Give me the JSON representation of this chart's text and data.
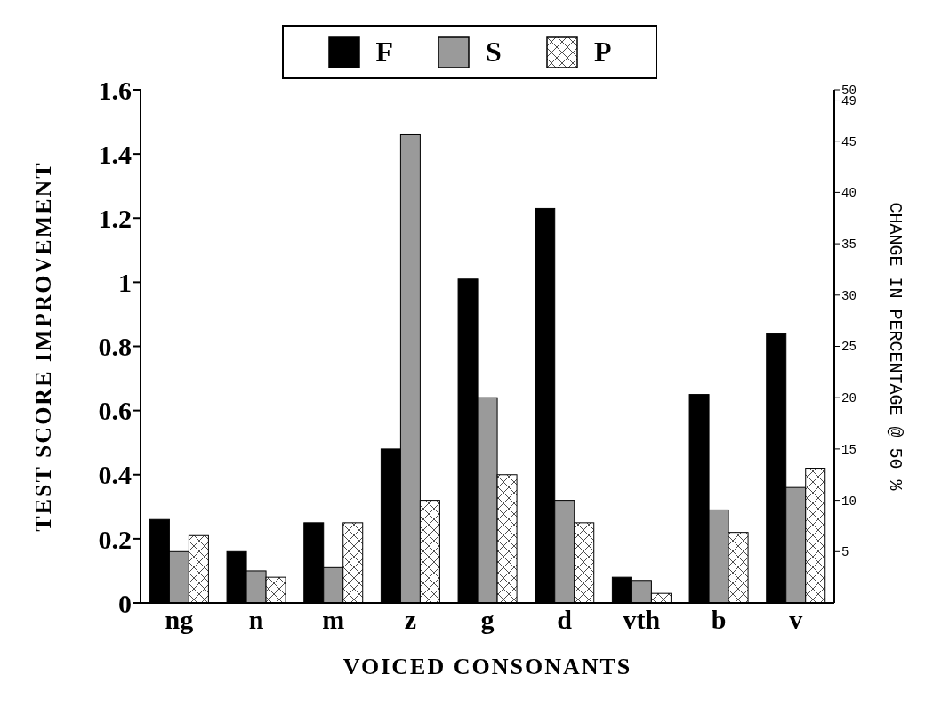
{
  "chart_data": {
    "type": "bar",
    "xlabel": "VOICED CONSONANTS",
    "ylabel": "TEST SCORE IMPROVEMENT",
    "y2label": "CHANGE IN PERCENTAGE @ 50 %",
    "categories": [
      "ng",
      "n",
      "m",
      "z",
      "g",
      "d",
      "vth",
      "b",
      "v"
    ],
    "series": [
      {
        "name": "F",
        "color": "#000000",
        "values": [
          0.26,
          0.16,
          0.25,
          0.48,
          1.01,
          1.23,
          0.08,
          0.65,
          0.84
        ]
      },
      {
        "name": "S",
        "color": "#9a9a9a",
        "values": [
          0.16,
          0.1,
          0.11,
          1.46,
          0.64,
          0.32,
          0.07,
          0.29,
          0.36
        ]
      },
      {
        "name": "P",
        "color": "#ffffff",
        "values": [
          0.21,
          0.08,
          0.25,
          0.32,
          0.4,
          0.25,
          0.03,
          0.22,
          0.42
        ]
      }
    ],
    "ylim": [
      0,
      1.6
    ],
    "yticks": [
      0,
      0.2,
      0.4,
      0.6,
      0.8,
      1,
      1.2,
      1.4,
      1.6
    ],
    "y2lim": [
      0,
      50
    ],
    "y2ticks": [
      5,
      10,
      15,
      20,
      25,
      30,
      35,
      40,
      45,
      49,
      50
    ],
    "grid": false,
    "legend": "top"
  }
}
